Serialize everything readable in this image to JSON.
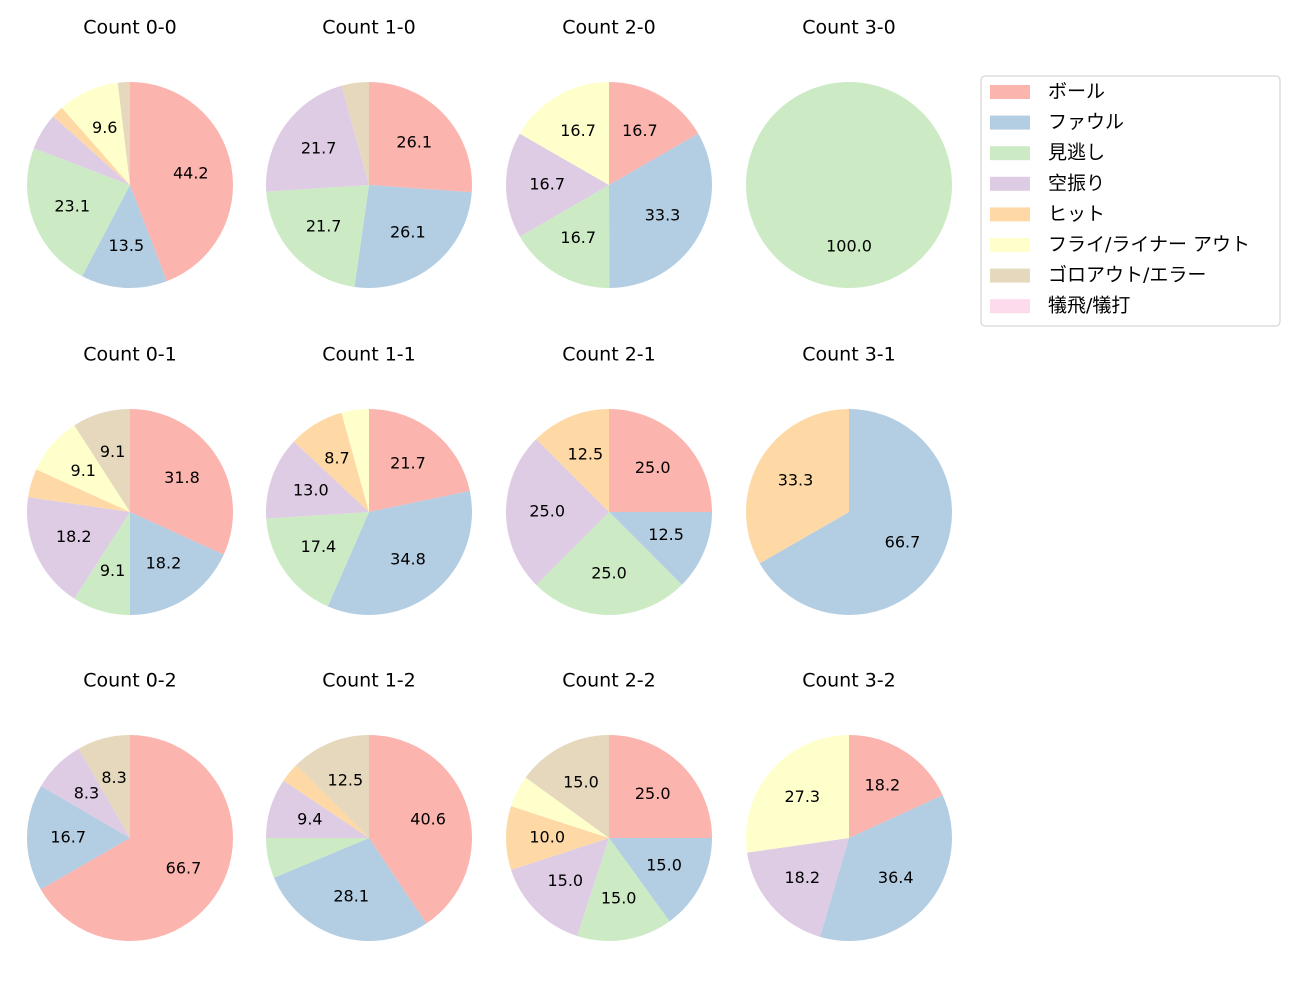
{
  "chart_data": [
    {
      "type": "pie",
      "title": "Count 0-0",
      "values": [
        44.2,
        13.5,
        23.1,
        5.8,
        1.9,
        9.6,
        1.9,
        0
      ],
      "value_labels": [
        "44.2",
        "13.5",
        "23.1",
        null,
        null,
        "9.6",
        null,
        null
      ]
    },
    {
      "type": "pie",
      "title": "Count 1-0",
      "values": [
        26.1,
        26.1,
        21.7,
        21.7,
        0,
        0,
        4.3,
        0
      ],
      "value_labels": [
        "26.1",
        "26.1",
        "21.7",
        "21.7",
        null,
        null,
        null,
        null
      ]
    },
    {
      "type": "pie",
      "title": "Count 2-0",
      "values": [
        16.7,
        33.3,
        16.7,
        16.7,
        0,
        16.7,
        0,
        0
      ],
      "value_labels": [
        "16.7",
        "33.3",
        "16.7",
        "16.7",
        null,
        "16.7",
        null,
        null
      ]
    },
    {
      "type": "pie",
      "title": "Count 3-0",
      "values": [
        0,
        0,
        100,
        0,
        0,
        0,
        0,
        0
      ],
      "value_labels": [
        null,
        null,
        "100.0",
        null,
        null,
        null,
        null,
        null
      ]
    },
    {
      "type": "pie",
      "title": "Count 0-1",
      "values": [
        31.8,
        18.2,
        9.1,
        18.2,
        4.5,
        9.1,
        9.1,
        0
      ],
      "value_labels": [
        "31.8",
        "18.2",
        "9.1",
        "18.2",
        null,
        "9.1",
        "9.1",
        null
      ]
    },
    {
      "type": "pie",
      "title": "Count 1-1",
      "values": [
        21.7,
        34.8,
        17.4,
        13.0,
        8.7,
        4.3,
        0,
        0
      ],
      "value_labels": [
        "21.7",
        "34.8",
        "17.4",
        "13.0",
        "8.7",
        null,
        null,
        null
      ]
    },
    {
      "type": "pie",
      "title": "Count 2-1",
      "values": [
        25.0,
        12.5,
        25.0,
        25.0,
        12.5,
        0,
        0,
        0
      ],
      "value_labels": [
        "25.0",
        "12.5",
        "25.0",
        "25.0",
        "12.5",
        null,
        null,
        null
      ]
    },
    {
      "type": "pie",
      "title": "Count 3-1",
      "values": [
        0,
        66.7,
        0,
        0,
        33.3,
        0,
        0,
        0
      ],
      "value_labels": [
        null,
        "66.7",
        null,
        null,
        "33.3",
        null,
        null,
        null
      ]
    },
    {
      "type": "pie",
      "title": "Count 0-2",
      "values": [
        66.7,
        16.7,
        0,
        8.3,
        0,
        0,
        8.3,
        0
      ],
      "value_labels": [
        "66.7",
        "16.7",
        null,
        "8.3",
        null,
        null,
        "8.3",
        null
      ]
    },
    {
      "type": "pie",
      "title": "Count 1-2",
      "values": [
        40.6,
        28.1,
        6.3,
        9.4,
        3.1,
        0,
        12.5,
        0
      ],
      "value_labels": [
        "40.6",
        "28.1",
        null,
        "9.4",
        null,
        null,
        "12.5",
        null
      ]
    },
    {
      "type": "pie",
      "title": "Count 2-2",
      "values": [
        25.0,
        15.0,
        15.0,
        15.0,
        10.0,
        5.0,
        15.0,
        0
      ],
      "value_labels": [
        "25.0",
        "15.0",
        "15.0",
        "15.0",
        "10.0",
        null,
        "15.0",
        null
      ]
    },
    {
      "type": "pie",
      "title": "Count 3-2",
      "values": [
        18.2,
        36.4,
        0,
        18.2,
        0,
        27.3,
        0,
        0
      ],
      "value_labels": [
        "18.2",
        "36.4",
        null,
        "18.2",
        null,
        "27.3",
        null,
        null
      ]
    }
  ],
  "legend": {
    "position": "upper right",
    "entries": [
      {
        "name": "ボール",
        "color": "#fbb4ae"
      },
      {
        "name": "ファウル",
        "color": "#b3cde3"
      },
      {
        "name": "見逃し",
        "color": "#ccebc5"
      },
      {
        "name": "空振り",
        "color": "#decbe4"
      },
      {
        "name": "ヒット",
        "color": "#fed9a6"
      },
      {
        "name": "フライ/ライナー アウト",
        "color": "#ffffcc"
      },
      {
        "name": "ゴロアウト/エラー",
        "color": "#e5d8bd"
      },
      {
        "name": "犠飛/犠打",
        "color": "#fddaec"
      }
    ]
  }
}
